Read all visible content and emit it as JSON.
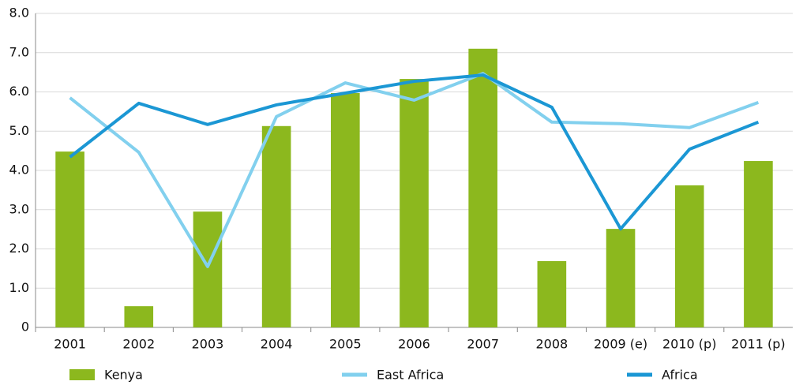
{
  "chart_data": {
    "type": "bar-line",
    "categories": [
      "2001",
      "2002",
      "2003",
      "2004",
      "2005",
      "2006",
      "2007",
      "2008",
      "2009 (e)",
      "2010 (p)",
      "2011 (p)"
    ],
    "series": [
      {
        "name": "Kenya",
        "type": "bar",
        "color": "#8cb81e",
        "values": [
          4.48,
          0.54,
          2.95,
          5.13,
          5.97,
          6.33,
          7.1,
          1.69,
          2.51,
          3.62,
          4.24
        ]
      },
      {
        "name": "East Africa",
        "type": "line",
        "color": "#82d0ee",
        "values": [
          5.85,
          4.46,
          1.55,
          5.37,
          6.23,
          5.79,
          6.47,
          5.23,
          5.19,
          5.09,
          5.73
        ]
      },
      {
        "name": "Africa",
        "type": "line",
        "color": "#1b97d4",
        "values": [
          4.34,
          5.71,
          5.17,
          5.67,
          5.97,
          6.27,
          6.43,
          5.61,
          2.51,
          4.54,
          5.23
        ]
      }
    ],
    "ylim": [
      0,
      8
    ],
    "yticks": [
      0,
      {
        "value": 1,
        "label": "1.0"
      },
      {
        "value": 2,
        "label": "2.0"
      },
      {
        "value": 3,
        "label": "3.0"
      },
      {
        "value": 4,
        "label": "4.0"
      },
      {
        "value": 5,
        "label": "5.0"
      },
      {
        "value": 6,
        "label": "6.0"
      },
      {
        "value": 7,
        "label": "7.0"
      },
      {
        "value": 8,
        "label": "8.0"
      }
    ],
    "grid": true,
    "legend": "bottom"
  }
}
